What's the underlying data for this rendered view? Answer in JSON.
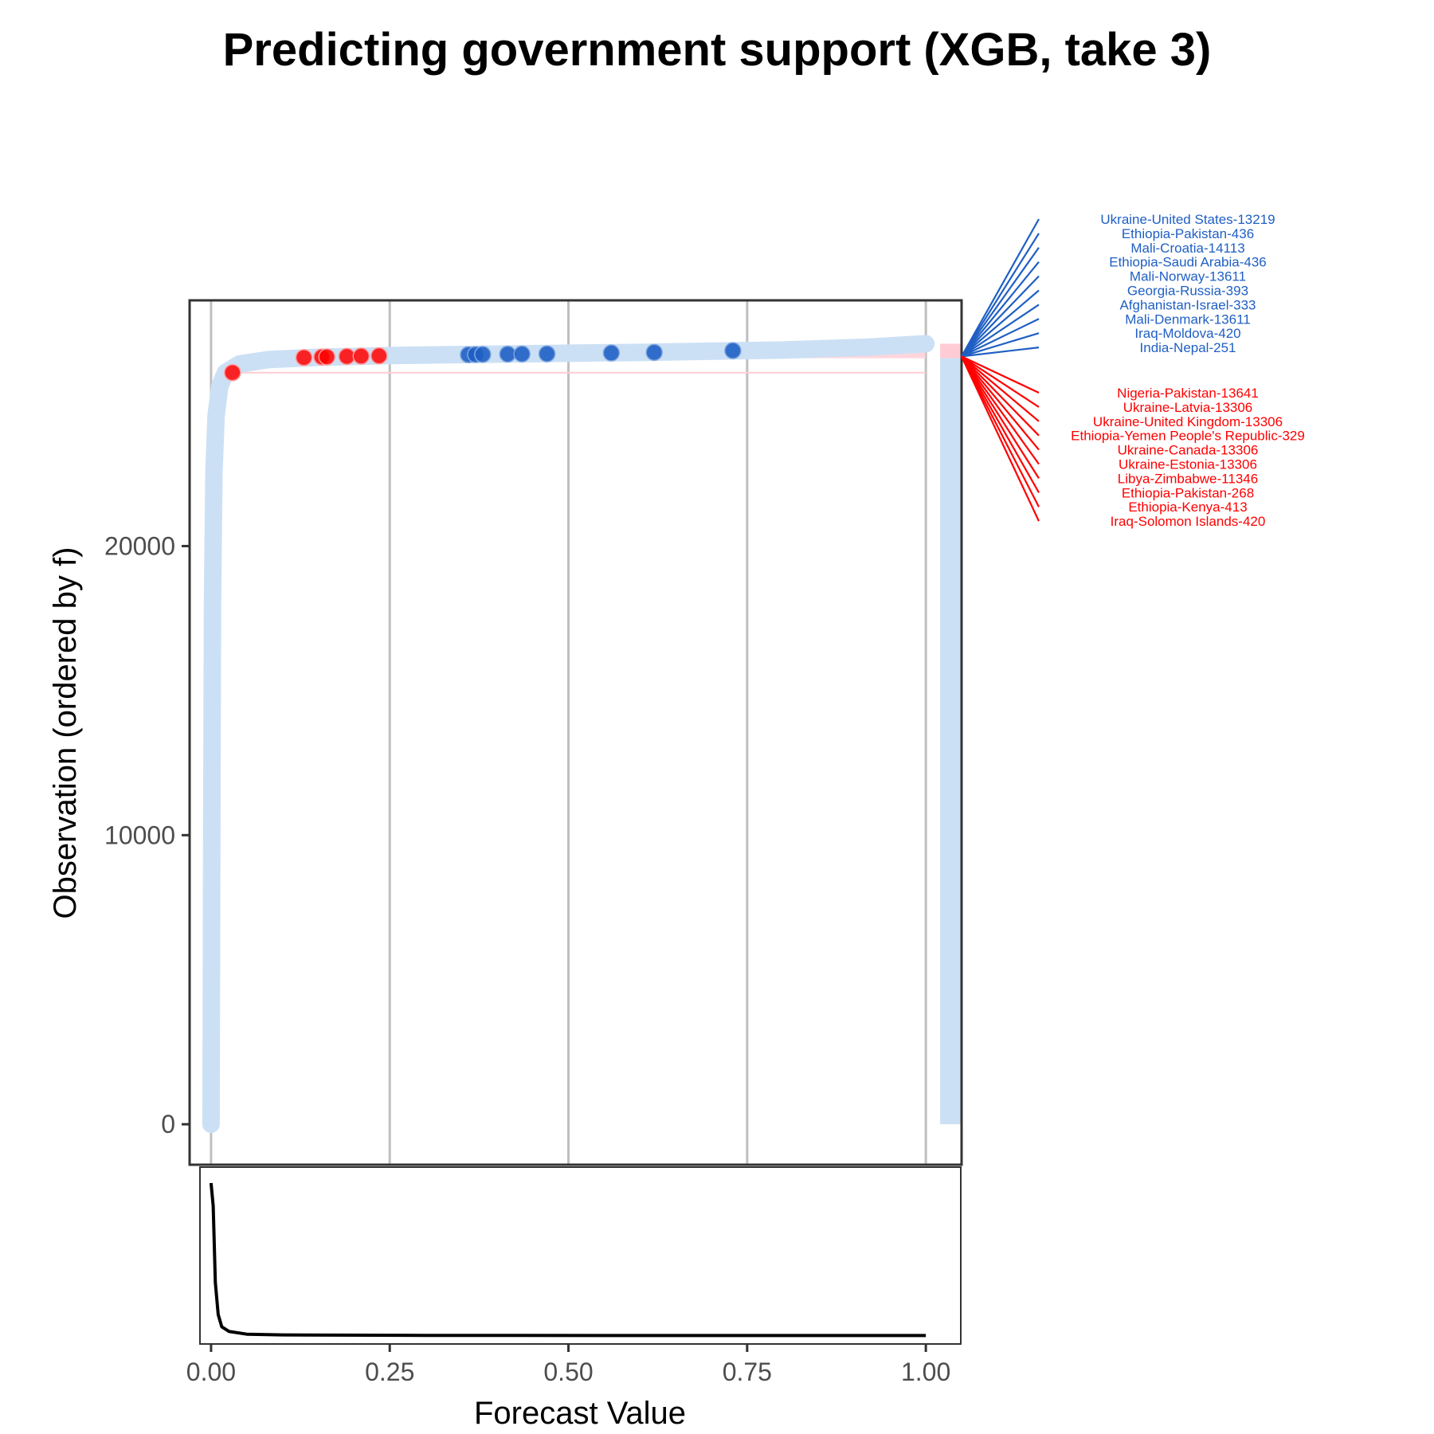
{
  "chart_data": {
    "type": "scatter",
    "title": "Predicting government support (XGB, take 3)",
    "xlabel": "Forecast Value",
    "ylabel": "Observation (ordered by f)",
    "xlim": [
      -0.03,
      1.05
    ],
    "ylim": [
      -1400,
      28500
    ],
    "x_ticks": [
      0,
      0.25,
      0.5,
      0.75,
      1
    ],
    "x_tick_labels": [
      "0.00",
      "0.25",
      "0.50",
      "0.75",
      "1.00"
    ],
    "y_ticks": [
      0,
      10000,
      20000
    ],
    "y_tick_labels": [
      "0",
      "10000",
      "20000"
    ],
    "grid": "vertical",
    "n_observations": 27000,
    "colors": {
      "negative": "#cce0f5",
      "positive": "#ffccd5",
      "false_negative": "#ff0000",
      "false_positive": "#1f5fc4",
      "density": "#000000",
      "panel_border": "#333333",
      "grid": "#bfbfbf"
    },
    "curve": [
      [
        0.0,
        0
      ],
      [
        0.001,
        10000
      ],
      [
        0.002,
        18000
      ],
      [
        0.004,
        22500
      ],
      [
        0.007,
        24500
      ],
      [
        0.012,
        25500
      ],
      [
        0.02,
        26000
      ],
      [
        0.04,
        26300
      ],
      [
        0.08,
        26450
      ],
      [
        0.15,
        26530
      ],
      [
        0.25,
        26590
      ],
      [
        0.4,
        26640
      ],
      [
        0.6,
        26700
      ],
      [
        0.8,
        26780
      ],
      [
        0.92,
        26880
      ],
      [
        1.0,
        27000
      ]
    ],
    "highlight_points": [
      {
        "x": 0.155,
        "y": 26540,
        "class": "false_negative"
      },
      {
        "x": 0.162,
        "y": 26545,
        "class": "false_negative"
      },
      {
        "x": 0.19,
        "y": 26560,
        "class": "false_negative"
      },
      {
        "x": 0.21,
        "y": 26570,
        "class": "false_negative"
      },
      {
        "x": 0.235,
        "y": 26580,
        "class": "false_negative"
      },
      {
        "x": 0.13,
        "y": 26520,
        "class": "false_negative"
      },
      {
        "x": 0.03,
        "y": 26000,
        "class": "false_negative"
      },
      {
        "x": 0.36,
        "y": 26620,
        "class": "false_positive"
      },
      {
        "x": 0.37,
        "y": 26625,
        "class": "false_positive"
      },
      {
        "x": 0.38,
        "y": 26630,
        "class": "false_positive"
      },
      {
        "x": 0.415,
        "y": 26640,
        "class": "false_positive"
      },
      {
        "x": 0.435,
        "y": 26645,
        "class": "false_positive"
      },
      {
        "x": 0.47,
        "y": 26650,
        "class": "false_positive"
      },
      {
        "x": 0.56,
        "y": 26680,
        "class": "false_positive"
      },
      {
        "x": 0.62,
        "y": 26700,
        "class": "false_positive"
      },
      {
        "x": 0.73,
        "y": 26760,
        "class": "false_positive"
      }
    ],
    "density": [
      [
        0.0,
        1.0
      ],
      [
        0.003,
        0.85
      ],
      [
        0.006,
        0.35
      ],
      [
        0.01,
        0.14
      ],
      [
        0.015,
        0.06
      ],
      [
        0.025,
        0.03
      ],
      [
        0.05,
        0.012
      ],
      [
        0.1,
        0.007
      ],
      [
        0.3,
        0.004
      ],
      [
        0.6,
        0.003
      ],
      [
        1.0,
        0.003
      ]
    ],
    "annotations_top": [
      "Ukraine-United States-13219",
      "Ethiopia-Pakistan-436",
      "Mali-Croatia-14113",
      "Ethiopia-Saudi Arabia-436",
      "Mali-Norway-13611",
      "Georgia-Russia-393",
      "Afghanistan-Israel-333",
      "Mali-Denmark-13611",
      "Iraq-Moldova-420",
      "India-Nepal-251"
    ],
    "annotations_bottom": [
      "Nigeria-Pakistan-13641",
      "Ukraine-Latvia-13306",
      "Ukraine-United Kingdom-13306",
      "Ethiopia-Yemen People's Republic-329",
      "Ukraine-Canada-13306",
      "Ukraine-Estonia-13306",
      "Libya-Zimbabwe-11346",
      "Ethiopia-Pakistan-268",
      "Ethiopia-Kenya-413",
      "Iraq-Solomon Islands-420"
    ]
  }
}
